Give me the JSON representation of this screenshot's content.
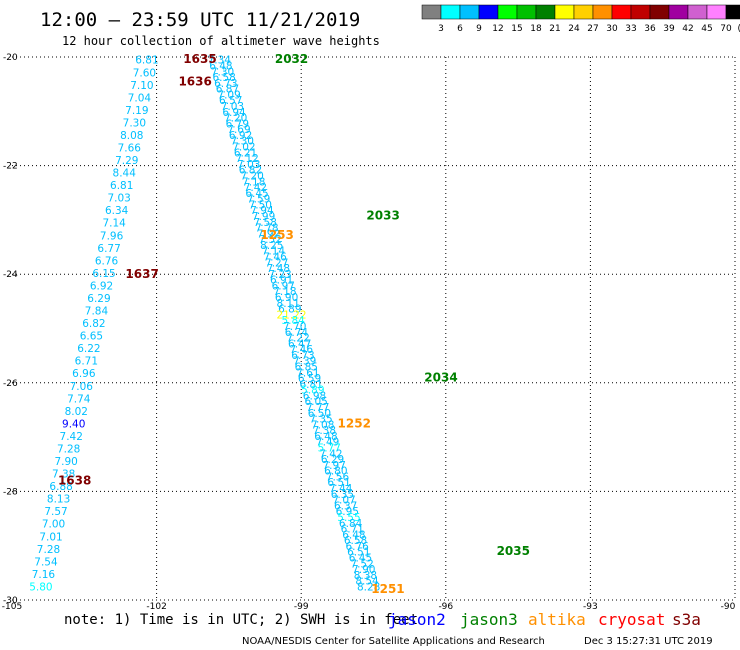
{
  "header": {
    "title": "12:00 – 23:59 UTC 11/21/2019",
    "subtitle": "12 hour collection of altimeter wave heights"
  },
  "colorbar": {
    "colors": [
      "#808080",
      "#00ffff",
      "#00c0ff",
      "#0000ff",
      "#00ff00",
      "#00c000",
      "#008000",
      "#ffff00",
      "#ffd000",
      "#ff9000",
      "#ff0000",
      "#c00000",
      "#800000",
      "#a000a0",
      "#d060d0",
      "#ff80ff",
      "#000000"
    ],
    "labels": [
      "3",
      "6",
      "9",
      "12",
      "15",
      "18",
      "21",
      "24",
      "27",
      "30",
      "33",
      "36",
      "39",
      "42",
      "45",
      "70"
    ],
    "unit": "(ft)"
  },
  "axes": {
    "y_ticks": [
      "-20",
      "-22",
      "-24",
      "-26",
      "-28",
      "-30"
    ],
    "x_ticks": [
      "-105",
      "-102",
      "-99",
      "-96",
      "-93",
      "-90"
    ]
  },
  "chart_data": {
    "type": "scatter",
    "title": "12:00 – 23:59 UTC 11/21/2019",
    "subtitle": "12 hour collection of altimeter wave heights",
    "xlim": [
      -105,
      -90
    ],
    "ylim": [
      -30,
      -20
    ],
    "grid": true,
    "x_ticks": [
      -105,
      -102,
      -99,
      -96,
      -93,
      -90
    ],
    "y_ticks": [
      -20,
      -22,
      -24,
      -26,
      -28,
      -30
    ],
    "units": "ft",
    "tracks": [
      {
        "satellite": "cryosat",
        "color": "#00bfff",
        "start": [
          -102.2,
          -20.05
        ],
        "end": [
          -104.4,
          -29.75
        ],
        "values": [
          "6.81",
          "7.60",
          "7.10",
          "7.04",
          "7.19",
          "7.30",
          "8.08",
          "7.66",
          "7.29",
          "8.44",
          "6.81",
          "7.03",
          "6.34",
          "7.14",
          "7.96",
          "6.77",
          "6.76",
          "6.15",
          "6.92",
          "6.29",
          "7.84",
          "6.82",
          "6.65",
          "6.22",
          "6.71",
          "6.96",
          "7.06",
          "7.74",
          "8.02",
          "9.40",
          "7.42",
          "7.28",
          "7.90",
          "7.38",
          "6.88",
          "8.13",
          "7.57",
          "7.00",
          "7.01",
          "7.28",
          "7.54",
          "7.16",
          "5.80"
        ]
      },
      {
        "satellite": "s3a",
        "color": "#00bfff",
        "start": [
          -100.7,
          -20.05
        ],
        "end": [
          -97.6,
          -29.75
        ],
        "values": [
          "7.34",
          "6.48",
          "7.30",
          "6.58",
          "6.73",
          "6.87",
          "7.09",
          "6.57",
          "7.03",
          "6.94",
          "7.20",
          "6.79",
          "7.69",
          "6.92",
          "7.30",
          "7.02",
          "6.21",
          "7.12",
          "7.03",
          "6.82",
          "7.20",
          "7.18",
          "7.42",
          "6.45",
          "7.59",
          "7.50",
          "7.94",
          "7.99",
          "7.58",
          "7.78",
          "7.92",
          "7.52",
          "8.25",
          "7.14",
          "7.46",
          "7.27",
          "7.48",
          "7.23",
          "6.91",
          "6.97",
          "7.18",
          "6.90",
          "8.11",
          "6.89",
          "21.22",
          "5.84",
          "7.70",
          "6.74",
          "7.22",
          "6.47",
          "7.46",
          "6.73",
          "7.39",
          "6.85",
          "7.61",
          "6.59",
          "6.81",
          "5.89",
          "6.98",
          "6.05",
          "7.77",
          "6.50",
          "7.35",
          "7.08",
          "7.38",
          "6.48",
          "7.49",
          "5.77",
          "7.42",
          "6.29",
          "7.97",
          "6.80",
          "7.56",
          "6.51",
          "7.44",
          "6.35",
          "7.07",
          "6.37",
          "6.95",
          "5.55",
          "6.84",
          "6.71",
          "6.48",
          "6.58",
          "6.76",
          "6.51",
          "6.45",
          "7.52",
          "7.90",
          "8.38",
          "8.54",
          "8.28"
        ]
      }
    ],
    "pass_labels": [
      {
        "text": "1635",
        "satellite": "cryosat",
        "color": "#800000",
        "x": -101.1,
        "y": -20.04
      },
      {
        "text": "2032",
        "satellite": "jason3",
        "color": "#008000",
        "x": -99.2,
        "y": -20.04
      },
      {
        "text": "1636",
        "satellite": "cryosat",
        "color": "#800000",
        "x": -101.2,
        "y": -20.45
      },
      {
        "text": "2033",
        "satellite": "jason3",
        "color": "#008000",
        "x": -97.3,
        "y": -22.92
      },
      {
        "text": "1253",
        "satellite": "altika",
        "color": "#ff9000",
        "x": -99.5,
        "y": -23.28
      },
      {
        "text": "1637",
        "satellite": "cryosat",
        "color": "#800000",
        "x": -102.3,
        "y": -24.0
      },
      {
        "text": "2034",
        "satellite": "jason3",
        "color": "#008000",
        "x": -96.1,
        "y": -25.9
      },
      {
        "text": "1252",
        "satellite": "altika",
        "color": "#ff9000",
        "x": -97.9,
        "y": -26.75
      },
      {
        "text": "1638",
        "satellite": "cryosat",
        "color": "#800000",
        "x": -103.7,
        "y": -27.8
      },
      {
        "text": "2035",
        "satellite": "jason3",
        "color": "#008000",
        "x": -94.6,
        "y": -29.1
      },
      {
        "text": "1251",
        "satellite": "altika",
        "color": "#ff9000",
        "x": -97.2,
        "y": -29.8
      }
    ]
  },
  "footer": {
    "note": "note: 1) Time is in UTC; 2) SWH is in feet",
    "legend": [
      {
        "name": "jason2",
        "color": "#0000ff"
      },
      {
        "name": "jason3",
        "color": "#008000"
      },
      {
        "name": "altika",
        "color": "#ff9000"
      },
      {
        "name": "cryosat",
        "color": "#ff0000"
      },
      {
        "name": "s3a",
        "color": "#800000"
      }
    ],
    "credit": "NOAA/NESDIS Center for Satellite Applications and Research",
    "timestamp": "Dec  3 15:27:31 UTC 2019"
  }
}
